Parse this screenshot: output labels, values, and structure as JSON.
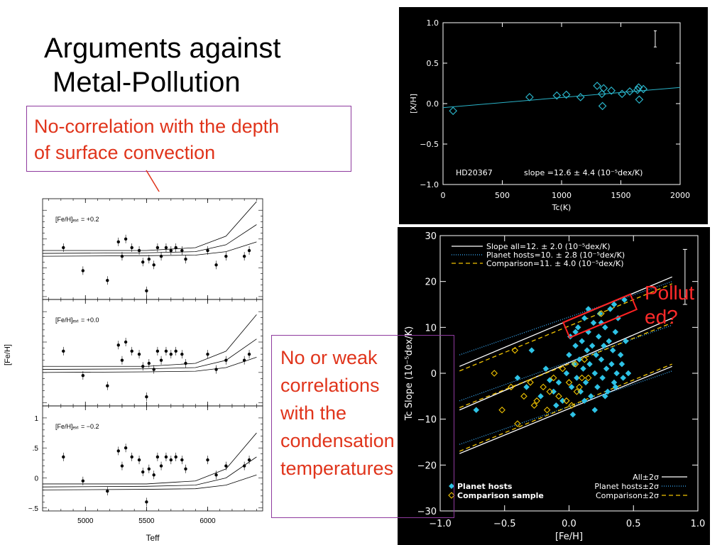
{
  "slide": {
    "title_line1": "Arguments against",
    "title_line2": "Metal-Pollution",
    "callout1_line1": "No-correlation with the depth",
    "callout1_line2": "of surface convection",
    "callout2_lines": [
      "No or weak",
      "correlations",
      "with the",
      "condensation",
      "temperatures"
    ],
    "polluted_line1": "Pollut",
    "polluted_line2": "ed?",
    "colors": {
      "callout_text": "#e0341b",
      "callout_border": "#8e3a9e",
      "polluted_text": "#ff2a2a"
    }
  },
  "chart_data": [
    {
      "type": "scatter",
      "id": "hd20367",
      "title": "",
      "annotation_star": "HD20367",
      "annotation_slope": "slope =12.6 ± 4.4 (10⁻⁵dex/K)",
      "xlabel": "Tc(K)",
      "ylabel": "[X/H]",
      "xlim": [
        0,
        2000
      ],
      "ylim": [
        -1.0,
        1.0
      ],
      "xticks": [
        0,
        500,
        1000,
        1500,
        2000
      ],
      "xticklabels": [
        "0",
        "500",
        "1000",
        "1500",
        "2000"
      ],
      "yticks": [
        -1.0,
        -0.5,
        0.0,
        0.5,
        1.0
      ],
      "yticklabels": [
        "−1.0",
        "−0.5",
        "0.0",
        "0.5",
        "1.0"
      ],
      "points": [
        {
          "x": 85,
          "y": -0.09
        },
        {
          "x": 730,
          "y": 0.08
        },
        {
          "x": 960,
          "y": 0.1
        },
        {
          "x": 1040,
          "y": 0.11
        },
        {
          "x": 1160,
          "y": 0.08
        },
        {
          "x": 1300,
          "y": 0.22
        },
        {
          "x": 1355,
          "y": 0.19
        },
        {
          "x": 1340,
          "y": 0.12
        },
        {
          "x": 1345,
          "y": -0.03
        },
        {
          "x": 1420,
          "y": 0.16
        },
        {
          "x": 1510,
          "y": 0.12
        },
        {
          "x": 1575,
          "y": 0.15
        },
        {
          "x": 1640,
          "y": 0.17
        },
        {
          "x": 1650,
          "y": 0.2
        },
        {
          "x": 1690,
          "y": 0.18
        },
        {
          "x": 1655,
          "y": 0.05
        }
      ],
      "fit_line": [
        {
          "x": 0,
          "y": -0.05
        },
        {
          "x": 2000,
          "y": 0.2
        }
      ],
      "errorbar": {
        "x": 1790,
        "y_low": 0.7,
        "y_high": 0.9
      },
      "colors": {
        "background": "#000000",
        "markers": "#2ab3c8",
        "fit": "#2ab3c8",
        "axes": "#ffffff"
      }
    },
    {
      "type": "scatter",
      "id": "tc-slope",
      "title": "",
      "xlabel": "[Fe/H]",
      "ylabel": "Tc Slope (10⁻⁵dex/K)",
      "xlim": [
        -1.0,
        1.0
      ],
      "ylim": [
        -30,
        30
      ],
      "xticks": [
        -1.0,
        -0.5,
        0.0,
        0.5,
        1.0
      ],
      "xticklabels": [
        "−1.0",
        "−0.5",
        "0.0",
        "0.5",
        "1.0"
      ],
      "yticks": [
        -30,
        -20,
        -10,
        0,
        10,
        20,
        30
      ],
      "yticklabels": [
        "−30",
        "−20",
        "−10",
        "0",
        "10",
        "20",
        "30"
      ],
      "legend_top": [
        "Slope all=12. ± 2.0 (10⁻⁵dex/K)",
        "Planet hosts=10. ± 2.8 (10⁻⁵dex/K)",
        "Comparison=11. ± 4.0 (10⁻⁵dex/K)"
      ],
      "legend_bottom_left": [
        "Planet hosts",
        "Comparison sample"
      ],
      "legend_bottom_right": [
        "All±2σ",
        "Planet hosts±2σ",
        "Comparison±2σ"
      ],
      "series": [
        {
          "name": "Planet hosts",
          "color": "#2ec3e6",
          "points": [
            {
              "x": -0.72,
              "y": -8
            },
            {
              "x": -0.29,
              "y": 5
            },
            {
              "x": -0.22,
              "y": -5
            },
            {
              "x": -0.15,
              "y": -1.5
            },
            {
              "x": -0.12,
              "y": -4
            },
            {
              "x": -0.08,
              "y": -2
            },
            {
              "x": -0.05,
              "y": -6
            },
            {
              "x": -0.02,
              "y": 0
            },
            {
              "x": 0.0,
              "y": 4
            },
            {
              "x": 0.01,
              "y": 8
            },
            {
              "x": 0.02,
              "y": -3
            },
            {
              "x": 0.04,
              "y": 2
            },
            {
              "x": 0.05,
              "y": 6
            },
            {
              "x": 0.06,
              "y": -1
            },
            {
              "x": 0.07,
              "y": 10
            },
            {
              "x": 0.08,
              "y": 3
            },
            {
              "x": 0.09,
              "y": -4
            },
            {
              "x": 0.1,
              "y": 7
            },
            {
              "x": 0.11,
              "y": 1
            },
            {
              "x": 0.12,
              "y": 12
            },
            {
              "x": 0.13,
              "y": -2
            },
            {
              "x": 0.14,
              "y": 5
            },
            {
              "x": 0.15,
              "y": 9
            },
            {
              "x": 0.16,
              "y": 2
            },
            {
              "x": 0.17,
              "y": -5
            },
            {
              "x": 0.18,
              "y": 6
            },
            {
              "x": 0.19,
              "y": 11
            },
            {
              "x": 0.2,
              "y": 0
            },
            {
              "x": 0.21,
              "y": 4
            },
            {
              "x": 0.22,
              "y": -3
            },
            {
              "x": 0.23,
              "y": 8
            },
            {
              "x": 0.24,
              "y": 13
            },
            {
              "x": 0.25,
              "y": 3
            },
            {
              "x": 0.26,
              "y": -1
            },
            {
              "x": 0.27,
              "y": 6
            },
            {
              "x": 0.28,
              "y": 10
            },
            {
              "x": 0.29,
              "y": 1
            },
            {
              "x": 0.3,
              "y": -4
            },
            {
              "x": 0.31,
              "y": 7
            },
            {
              "x": 0.32,
              "y": 14
            },
            {
              "x": 0.33,
              "y": 2
            },
            {
              "x": 0.34,
              "y": 5
            },
            {
              "x": 0.35,
              "y": -2
            },
            {
              "x": 0.36,
              "y": 9
            },
            {
              "x": 0.37,
              "y": 0
            },
            {
              "x": 0.38,
              "y": 12
            },
            {
              "x": 0.4,
              "y": 4
            },
            {
              "x": 0.42,
              "y": -1
            },
            {
              "x": 0.44,
              "y": 7
            },
            {
              "x": 0.46,
              "y": 0
            },
            {
              "x": -0.4,
              "y": -1
            },
            {
              "x": -0.33,
              "y": -3
            },
            {
              "x": -0.18,
              "y": 1
            },
            {
              "x": -0.1,
              "y": -7
            },
            {
              "x": 0.03,
              "y": -9
            },
            {
              "x": 0.12,
              "y": -6
            },
            {
              "x": 0.2,
              "y": -8
            },
            {
              "x": 0.28,
              "y": -5
            },
            {
              "x": 0.36,
              "y": -3
            },
            {
              "x": 0.41,
              "y": 2
            },
            {
              "x": 0.05,
              "y": 9
            },
            {
              "x": 0.15,
              "y": 14
            },
            {
              "x": 0.25,
              "y": 11
            },
            {
              "x": 0.35,
              "y": 15
            },
            {
              "x": 0.43,
              "y": 16
            }
          ]
        },
        {
          "name": "Comparison sample",
          "color": "#f2c400",
          "points": [
            {
              "x": -0.58,
              "y": 0
            },
            {
              "x": -0.52,
              "y": -8
            },
            {
              "x": -0.45,
              "y": -3
            },
            {
              "x": -0.4,
              "y": -11
            },
            {
              "x": -0.35,
              "y": -5
            },
            {
              "x": -0.3,
              "y": -2
            },
            {
              "x": -0.25,
              "y": -6
            },
            {
              "x": -0.2,
              "y": -3
            },
            {
              "x": -0.17,
              "y": -8
            },
            {
              "x": -0.15,
              "y": -4
            },
            {
              "x": -0.12,
              "y": -1
            },
            {
              "x": -0.08,
              "y": -5
            },
            {
              "x": -0.05,
              "y": 1
            },
            {
              "x": -0.02,
              "y": -6
            },
            {
              "x": 0.0,
              "y": -2
            },
            {
              "x": 0.02,
              "y": -7
            },
            {
              "x": 0.05,
              "y": 2
            },
            {
              "x": 0.08,
              "y": -3
            },
            {
              "x": 0.1,
              "y": -1
            },
            {
              "x": 0.12,
              "y": 3
            },
            {
              "x": -0.27,
              "y": -7
            },
            {
              "x": -0.42,
              "y": 5
            },
            {
              "x": 0.06,
              "y": -4
            },
            {
              "x": 0.15,
              "y": -1
            },
            {
              "x": 0.25,
              "y": 13
            }
          ]
        }
      ],
      "lines": {
        "all_center": [
          {
            "x": -0.85,
            "y": -8
          },
          {
            "x": 0.8,
            "y": 12
          }
        ],
        "all_upper": [
          {
            "x": -0.85,
            "y": 1.5
          },
          {
            "x": 0.8,
            "y": 21
          }
        ],
        "all_lower": [
          {
            "x": -0.85,
            "y": -17.5
          },
          {
            "x": 0.8,
            "y": 1.5
          }
        ],
        "hosts_center": [
          {
            "x": -0.85,
            "y": -6
          },
          {
            "x": 0.8,
            "y": 10.5
          }
        ],
        "hosts_upper": [
          {
            "x": -0.85,
            "y": 4
          },
          {
            "x": 0.8,
            "y": 20
          }
        ],
        "hosts_lower": [
          {
            "x": -0.85,
            "y": -15.5
          },
          {
            "x": 0.8,
            "y": 0.5
          }
        ],
        "comp_center": [
          {
            "x": -0.85,
            "y": -7.5
          },
          {
            "x": 0.8,
            "y": 11
          }
        ],
        "comp_upper": [
          {
            "x": -0.85,
            "y": 0.5
          },
          {
            "x": 0.8,
            "y": 19.5
          }
        ],
        "comp_lower": [
          {
            "x": -0.85,
            "y": -17
          },
          {
            "x": 0.8,
            "y": 2
          }
        ]
      },
      "highlight": {
        "x0": -0.02,
        "x1": 0.5,
        "y_low": 10.5,
        "y_high": 14.5
      },
      "errorbar": {
        "x": 0.9,
        "y_low": 15,
        "y_high": 27
      },
      "colors": {
        "background": "#000000",
        "all": "#ffffff",
        "hosts": "#3ab0ff",
        "comp": "#f2c400",
        "highlight": "#ff2222"
      }
    },
    {
      "type": "line",
      "id": "feh-teff",
      "title": "",
      "xlabel": "Teff",
      "ylabel": "[Fe/H]",
      "xlim": [
        4650,
        6450
      ],
      "ylim": [
        -0.55,
        1.2
      ],
      "xticks": [
        5000,
        5500,
        6000
      ],
      "xticklabels": [
        "5000",
        "5500",
        "6000"
      ],
      "yticks": [
        1.0,
        0.5,
        0.0,
        -0.5
      ],
      "yticklabels": [
        "1",
        ".5",
        "0",
        "−.5"
      ],
      "panel_labels": [
        "[Fe/H]ₑₓₜ = +0.2",
        "[Fe/H]ₑₓₜ = +0.0",
        "[Fe/H]ₑₓₜ = −0.2"
      ],
      "points": [
        {
          "x": 4820,
          "y": 0.35
        },
        {
          "x": 4980,
          "y": -0.05
        },
        {
          "x": 5180,
          "y": -0.22
        },
        {
          "x": 5270,
          "y": 0.45
        },
        {
          "x": 5300,
          "y": 0.2
        },
        {
          "x": 5330,
          "y": 0.5
        },
        {
          "x": 5380,
          "y": 0.35
        },
        {
          "x": 5440,
          "y": 0.3
        },
        {
          "x": 5470,
          "y": 0.1
        },
        {
          "x": 5500,
          "y": -0.4
        },
        {
          "x": 5520,
          "y": 0.15
        },
        {
          "x": 5560,
          "y": 0.05
        },
        {
          "x": 5590,
          "y": 0.35
        },
        {
          "x": 5620,
          "y": 0.2
        },
        {
          "x": 5660,
          "y": 0.35
        },
        {
          "x": 5700,
          "y": 0.3
        },
        {
          "x": 5740,
          "y": 0.35
        },
        {
          "x": 5790,
          "y": 0.3
        },
        {
          "x": 5820,
          "y": 0.15
        },
        {
          "x": 6000,
          "y": 0.3
        },
        {
          "x": 6070,
          "y": 0.05
        },
        {
          "x": 6150,
          "y": 0.2
        },
        {
          "x": 6300,
          "y": 0.2
        },
        {
          "x": 6340,
          "y": 0.3
        }
      ],
      "curves_top": [
        [
          {
            "x": 4650,
            "y": 0.1
          },
          {
            "x": 5500,
            "y": 0.1
          },
          {
            "x": 5900,
            "y": 0.15
          },
          {
            "x": 6150,
            "y": 0.35
          },
          {
            "x": 6400,
            "y": 0.95
          }
        ],
        [
          {
            "x": 4650,
            "y": 0.05
          },
          {
            "x": 5500,
            "y": 0.06
          },
          {
            "x": 5900,
            "y": 0.08
          },
          {
            "x": 6150,
            "y": 0.2
          },
          {
            "x": 6400,
            "y": 0.55
          }
        ],
        [
          {
            "x": 4650,
            "y": 0.0
          },
          {
            "x": 5500,
            "y": 0.01
          },
          {
            "x": 5900,
            "y": 0.02
          },
          {
            "x": 6150,
            "y": 0.08
          },
          {
            "x": 6400,
            "y": 0.25
          }
        ]
      ],
      "colors": {
        "background": "#ffffff",
        "ink": "#000000"
      }
    }
  ]
}
